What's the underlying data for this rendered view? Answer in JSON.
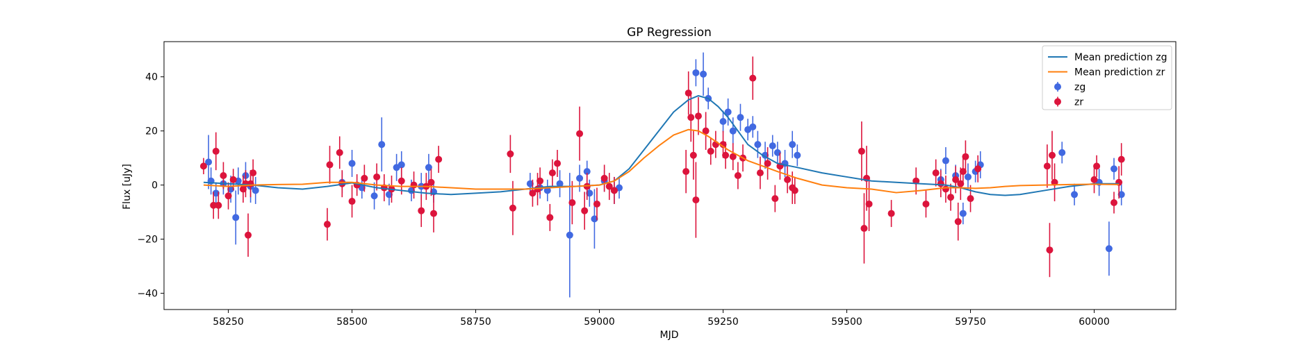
{
  "chart_data": {
    "type": "scatter",
    "title": "GP Regression",
    "xlabel": "MJD",
    "ylabel": "Flux [uJy]",
    "xlim": [
      58120,
      60165
    ],
    "ylim": [
      -46,
      53
    ],
    "xticks": [
      58250,
      58500,
      58750,
      59000,
      59250,
      59500,
      59750,
      60000
    ],
    "yticks": [
      -40,
      -20,
      0,
      20,
      40
    ],
    "grid": false,
    "legend_position": "top-right",
    "series": [
      {
        "name": "Mean prediction zg",
        "kind": "line",
        "color": "#1f77b4",
        "x": [
          58200,
          58250,
          58300,
          58350,
          58400,
          58450,
          58500,
          58550,
          58600,
          58650,
          58700,
          58750,
          58800,
          58850,
          58900,
          58950,
          59000,
          59030,
          59060,
          59090,
          59120,
          59150,
          59180,
          59200,
          59220,
          59240,
          59260,
          59280,
          59300,
          59330,
          59360,
          59400,
          59450,
          59500,
          59550,
          59600,
          59650,
          59700,
          59730,
          59760,
          59790,
          59820,
          59850,
          59900,
          59950,
          60000,
          60050
        ],
        "y": [
          1.0,
          0.5,
          0.0,
          -1.0,
          -1.5,
          -0.5,
          0.8,
          -1.0,
          -2.0,
          -3.0,
          -3.5,
          -3.0,
          -2.5,
          -1.5,
          -0.5,
          -0.5,
          0.0,
          1.5,
          6.0,
          13.0,
          20.0,
          27.0,
          31.5,
          33.0,
          32.0,
          29.0,
          25.0,
          20.0,
          15.0,
          11.0,
          8.0,
          6.5,
          4.5,
          3.0,
          1.5,
          1.0,
          0.5,
          0.0,
          -1.0,
          -2.5,
          -3.5,
          -3.8,
          -3.5,
          -2.0,
          -0.5,
          0.5,
          0.5
        ]
      },
      {
        "name": "Mean prediction zr",
        "kind": "line",
        "color": "#ff7f0e",
        "x": [
          58200,
          58250,
          58300,
          58350,
          58400,
          58450,
          58500,
          58550,
          58600,
          58650,
          58700,
          58750,
          58800,
          58850,
          58900,
          58950,
          59000,
          59030,
          59060,
          59090,
          59120,
          59150,
          59180,
          59200,
          59220,
          59240,
          59260,
          59280,
          59300,
          59330,
          59360,
          59400,
          59450,
          59500,
          59550,
          59600,
          59650,
          59700,
          59730,
          59760,
          59790,
          59820,
          59850,
          59900,
          59950,
          60000,
          60050
        ],
        "y": [
          0.0,
          -0.5,
          0.0,
          0.2,
          0.3,
          1.0,
          1.0,
          0.0,
          -0.5,
          -0.5,
          -1.0,
          -1.5,
          -1.5,
          -1.5,
          -1.0,
          -0.5,
          0.0,
          1.5,
          5.0,
          10.0,
          14.5,
          18.5,
          20.5,
          20.0,
          18.0,
          15.5,
          13.0,
          11.0,
          9.0,
          7.0,
          5.0,
          2.5,
          0.0,
          -1.0,
          -1.5,
          -2.8,
          -2.0,
          -1.0,
          -1.0,
          -1.2,
          -1.0,
          -0.5,
          -0.2,
          0.0,
          0.2,
          0.3,
          0.2
        ]
      },
      {
        "name": "zg",
        "kind": "errorbar",
        "color": "#4169e1",
        "x": [
          58210,
          58215,
          58225,
          58240,
          58255,
          58265,
          58270,
          58285,
          58295,
          58305,
          58480,
          58500,
          58520,
          58545,
          58560,
          58575,
          58590,
          58600,
          58620,
          58640,
          58655,
          58665,
          58860,
          58880,
          58895,
          58920,
          58940,
          58960,
          58975,
          58980,
          58990,
          59010,
          59030,
          59040,
          59195,
          59210,
          59220,
          59250,
          59260,
          59270,
          59285,
          59300,
          59310,
          59320,
          59335,
          59350,
          59360,
          59375,
          59390,
          59400,
          59690,
          59700,
          59720,
          59735,
          59745,
          59760,
          59770,
          59935,
          59960,
          60010,
          60030,
          60040,
          60055
        ],
        "y": [
          8.5,
          1.5,
          -3.0,
          0.5,
          -1.5,
          -12.0,
          1.5,
          3.5,
          -0.5,
          -2.0,
          1.0,
          8.0,
          -1.0,
          -4.0,
          15.0,
          -3.5,
          6.5,
          7.5,
          -2.0,
          -0.5,
          6.5,
          -2.5,
          0.5,
          -1.0,
          -2.0,
          0.5,
          -18.5,
          2.5,
          5.0,
          -3.0,
          -12.5,
          1.5,
          -2.0,
          -1.0,
          41.5,
          41.0,
          32.0,
          23.5,
          27.0,
          20.0,
          25.0,
          20.5,
          21.5,
          15.0,
          11.0,
          14.5,
          12.0,
          8.0,
          15.0,
          11.0,
          2.0,
          9.0,
          3.5,
          -10.5,
          3.0,
          5.0,
          7.5,
          12.0,
          -3.5,
          1.0,
          -23.5,
          6.0,
          -3.5
        ],
        "err": [
          10,
          5,
          4,
          4,
          5,
          10,
          5,
          5,
          6,
          5,
          4,
          5,
          4,
          5,
          10,
          4,
          5,
          5,
          4,
          5,
          5,
          4,
          4,
          4,
          4,
          5,
          23,
          5,
          4,
          5,
          11,
          4,
          5,
          4,
          5,
          8,
          4,
          4,
          5,
          5,
          5,
          4,
          4,
          5,
          5,
          4,
          4,
          5,
          5,
          4,
          4,
          5,
          4,
          4,
          5,
          4,
          5,
          4,
          4,
          5,
          10,
          4,
          4
        ]
      },
      {
        "name": "zr",
        "kind": "errorbar",
        "color": "#dc143c",
        "x": [
          58200,
          58220,
          58225,
          58230,
          58240,
          58250,
          58260,
          58280,
          58285,
          58290,
          58295,
          58300,
          58450,
          58455,
          58475,
          58480,
          58500,
          58510,
          58525,
          58550,
          58565,
          58580,
          58600,
          58625,
          58640,
          58650,
          58660,
          58665,
          58675,
          58820,
          58825,
          58865,
          58875,
          58880,
          58900,
          58905,
          58915,
          58945,
          58960,
          58970,
          58975,
          58995,
          59010,
          59020,
          59030,
          59175,
          59180,
          59185,
          59190,
          59195,
          59200,
          59215,
          59225,
          59235,
          59250,
          59255,
          59270,
          59280,
          59290,
          59310,
          59325,
          59340,
          59355,
          59365,
          59380,
          59390,
          59395,
          59530,
          59535,
          59540,
          59545,
          59590,
          59640,
          59660,
          59680,
          59690,
          59700,
          59710,
          59720,
          59725,
          59730,
          59735,
          59740,
          59750,
          59765,
          59905,
          59910,
          59915,
          59920,
          60000,
          60005,
          60040,
          60050,
          60055
        ],
        "y": [
          7.0,
          -7.5,
          12.5,
          -7.5,
          3.5,
          -4.0,
          2.0,
          -1.5,
          0.5,
          -18.5,
          0.5,
          4.5,
          -14.5,
          7.5,
          12.0,
          0.5,
          -6.0,
          0.0,
          2.5,
          3.0,
          -1.0,
          -1.5,
          1.5,
          0.0,
          -9.5,
          -0.5,
          1.0,
          -10.5,
          9.5,
          11.5,
          -8.5,
          -3.0,
          -1.5,
          1.5,
          -12.0,
          4.5,
          8.0,
          -6.5,
          19.0,
          -9.5,
          -0.5,
          -7.0,
          2.5,
          -0.5,
          -2.0,
          5.0,
          34.0,
          25.0,
          11.0,
          -5.5,
          25.5,
          20.0,
          12.5,
          15.0,
          15.0,
          11.0,
          10.5,
          3.5,
          10.0,
          39.5,
          4.5,
          8.0,
          -5.0,
          7.0,
          2.0,
          -1.0,
          -2.0,
          12.5,
          -16.0,
          2.5,
          -7.0,
          -10.5,
          1.5,
          -7.0,
          4.5,
          0.5,
          -1.5,
          -4.5,
          2.0,
          -13.5,
          0.5,
          5.0,
          10.5,
          -5.0,
          6.0,
          7.0,
          -24.0,
          11.0,
          1.0,
          2.0,
          7.0,
          -6.5,
          1.0,
          9.5
        ],
        "err": [
          3,
          5,
          7,
          5,
          5,
          5,
          4,
          5,
          5,
          8,
          5,
          5,
          6,
          7,
          6,
          5,
          6,
          4,
          5,
          5,
          5,
          5,
          5,
          5,
          6,
          5,
          5,
          7,
          5,
          7,
          10,
          5,
          6,
          5,
          5,
          5,
          5,
          8,
          10,
          7,
          5,
          6,
          5,
          5,
          5,
          8,
          8,
          9,
          9,
          14,
          7,
          7,
          5,
          5,
          5,
          5,
          5,
          5,
          5,
          8,
          6,
          6,
          5,
          5,
          5,
          6,
          5,
          11,
          13,
          12,
          10,
          5,
          5,
          5,
          5,
          5,
          5,
          5,
          5,
          7,
          6,
          5,
          6,
          5,
          5,
          8,
          10,
          9,
          7,
          5,
          4,
          4,
          6,
          6
        ]
      }
    ]
  }
}
